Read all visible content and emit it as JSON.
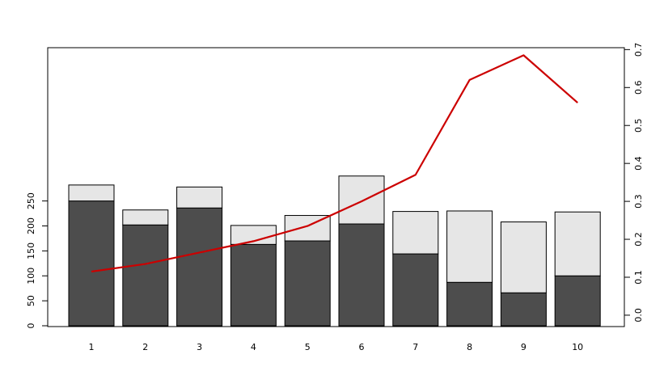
{
  "chart_data": {
    "type": "bar",
    "stacked": true,
    "categories": [
      "1",
      "2",
      "3",
      "4",
      "5",
      "6",
      "7",
      "8",
      "9",
      "10"
    ],
    "series": [
      {
        "values": [
          250,
          202,
          236,
          163,
          170,
          204,
          144,
          87,
          66,
          100
        ],
        "color": "#4d4d4d"
      },
      {
        "values": [
          32,
          30,
          42,
          38,
          51,
          96,
          85,
          143,
          142,
          128
        ],
        "color": "#e6e6e6"
      }
    ],
    "line": {
      "axis": "right",
      "color": "#cc0000",
      "values": [
        0.115,
        0.135,
        0.165,
        0.195,
        0.235,
        0.3,
        0.37,
        0.62,
        0.685,
        0.56
      ]
    },
    "ylim_left": [
      0,
      290
    ],
    "yticks_left": [
      0,
      50,
      100,
      150,
      200,
      250
    ],
    "ylim_right": [
      -0.03,
      0.705
    ],
    "yticks_right": [
      "0.0",
      "0.1",
      "0.2",
      "0.3",
      "0.4",
      "0.5",
      "0.6",
      "0.7"
    ],
    "title": "",
    "xlabel": "",
    "ylabel": "",
    "grid": false
  }
}
